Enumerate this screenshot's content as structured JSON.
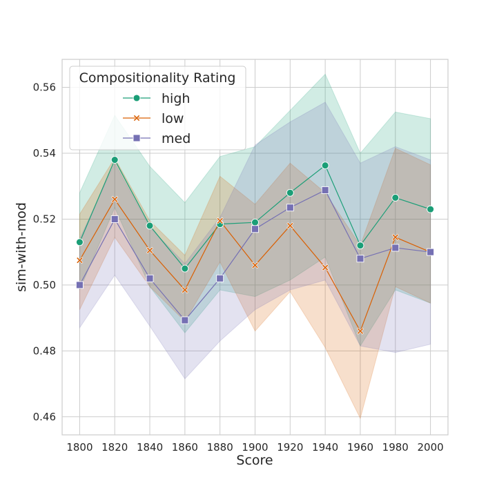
{
  "chart_data": {
    "type": "line",
    "title": "",
    "xlabel": "Score",
    "ylabel": "sim-with-mod",
    "x": [
      1800,
      1820,
      1840,
      1860,
      1880,
      1900,
      1920,
      1940,
      1960,
      1980,
      2000
    ],
    "xlim": [
      1790,
      2010
    ],
    "ylim": [
      0.4545,
      0.5685
    ],
    "yticks": [
      0.46,
      0.48,
      0.5,
      0.52,
      0.54,
      0.56
    ],
    "ytick_labels": [
      "0.46",
      "0.48",
      "0.50",
      "0.52",
      "0.54",
      "0.56"
    ],
    "xtick_labels": [
      "1800",
      "1820",
      "1840",
      "1860",
      "1880",
      "1900",
      "1920",
      "1940",
      "1960",
      "1980",
      "2000"
    ],
    "grid": true,
    "legend": {
      "title": "Compositionality Rating",
      "position": "top-left"
    },
    "series": [
      {
        "name": "high",
        "color": "#1b9e77",
        "marker": "circle",
        "values": [
          0.513,
          0.538,
          0.518,
          0.505,
          0.5185,
          0.519,
          0.528,
          0.5363,
          0.512,
          0.5265,
          0.523
        ],
        "ci_lower": [
          0.4985,
          0.5235,
          0.4995,
          0.4855,
          0.4985,
          0.4965,
          0.5015,
          0.5085,
          0.4815,
          0.4985,
          0.4945
        ],
        "ci_upper": [
          0.528,
          0.5515,
          0.536,
          0.525,
          0.539,
          0.542,
          0.553,
          0.564,
          0.54,
          0.5525,
          0.5505
        ]
      },
      {
        "name": "low",
        "color": "#d95f02",
        "marker": "x",
        "values": [
          0.5075,
          0.526,
          0.5105,
          0.4985,
          0.5195,
          0.506,
          0.518,
          0.5053,
          0.486,
          0.5145,
          0.51
        ],
        "ci_lower": [
          0.4925,
          0.5145,
          0.4995,
          0.489,
          0.507,
          0.486,
          0.498,
          0.481,
          0.4595,
          0.4995,
          0.4945
        ],
        "ci_upper": [
          0.5215,
          0.5385,
          0.5195,
          0.509,
          0.533,
          0.5245,
          0.537,
          0.528,
          0.512,
          0.5415,
          0.5365
        ]
      },
      {
        "name": "med",
        "color": "#7570b3",
        "marker": "square",
        "values": [
          0.5,
          0.52,
          0.502,
          0.4893,
          0.502,
          0.517,
          0.5235,
          0.5288,
          0.508,
          0.5113,
          0.51
        ],
        "ci_lower": [
          0.487,
          0.503,
          0.4875,
          0.4715,
          0.483,
          0.4925,
          0.4985,
          0.5015,
          0.4815,
          0.4795,
          0.482
        ],
        "ci_upper": [
          0.514,
          0.537,
          0.5175,
          0.5065,
          0.5205,
          0.5425,
          0.5495,
          0.5555,
          0.537,
          0.542,
          0.538
        ]
      }
    ]
  }
}
